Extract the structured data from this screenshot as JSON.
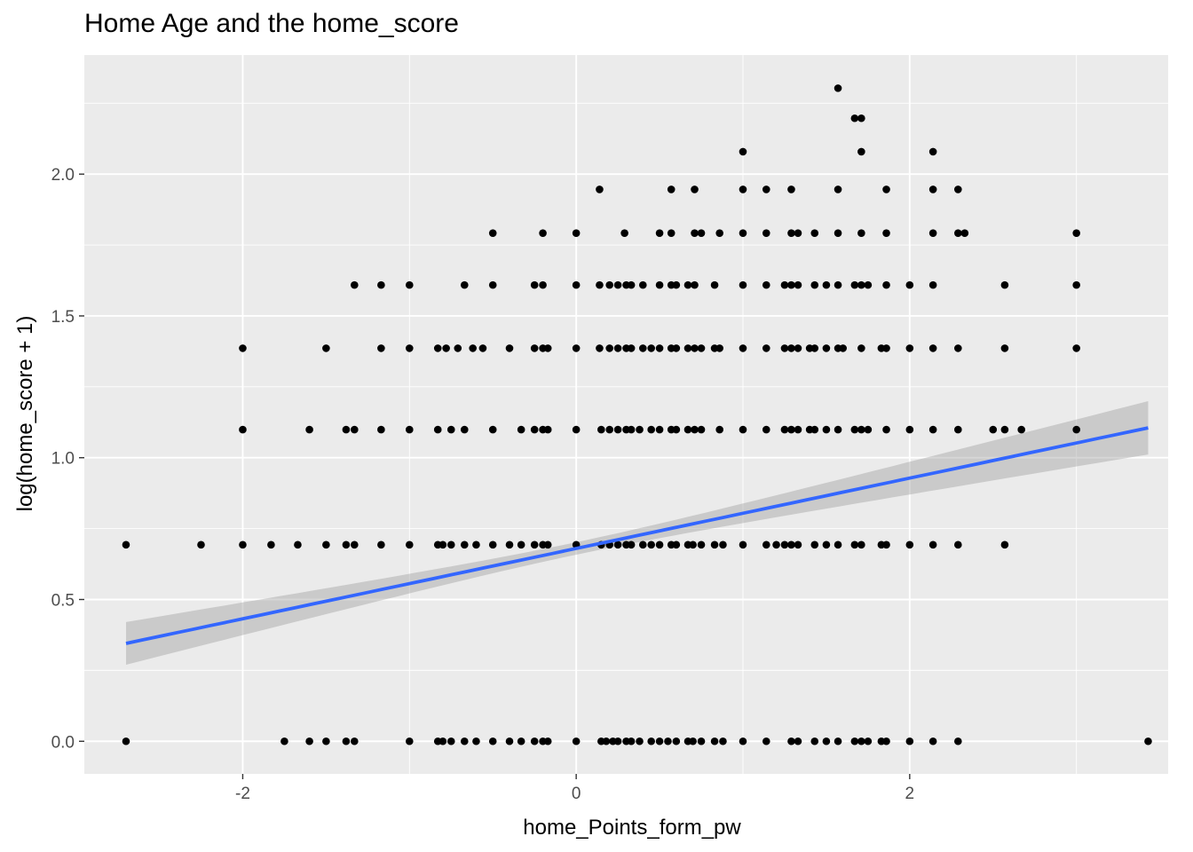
{
  "chart_data": {
    "type": "scatter",
    "title": "Home Age and the home_score",
    "xlabel": "home_Points_form_pw",
    "ylabel": "log(home_score + 1)",
    "xlim": [
      -2.95,
      3.55
    ],
    "ylim": [
      -0.115,
      2.42
    ],
    "x_ticks": [
      -2,
      0,
      2
    ],
    "x_tick_labels": [
      "-2",
      "0",
      "2"
    ],
    "y_ticks": [
      0,
      0.5,
      1,
      1.5,
      2
    ],
    "y_tick_labels": [
      "0.0",
      "0.5",
      "1.0",
      "1.5",
      "2.0"
    ],
    "grid": true,
    "colors": {
      "panel_background": "#ebebeb",
      "grid_line": "#ffffff",
      "points": "#000000",
      "fit_line": "#3366ff",
      "confidence_band": "#999999"
    },
    "points": [
      {
        "y": 0,
        "x": [
          -2.7,
          -1.75,
          -1.6,
          -1.5,
          -1.38,
          -1.33,
          -1,
          -0.83,
          -0.8,
          -0.75,
          -0.67,
          -0.6,
          -0.5,
          -0.4,
          -0.33,
          -0.25,
          -0.2,
          -0.17,
          0,
          0.15,
          0.18,
          0.22,
          0.25,
          0.3,
          0.33,
          0.38,
          0.45,
          0.5,
          0.55,
          0.6,
          0.67,
          0.7,
          0.75,
          0.83,
          0.88,
          1,
          1.14,
          1.29,
          1.33,
          1.43,
          1.5,
          1.57,
          1.67,
          1.71,
          1.75,
          1.83,
          1.86,
          2,
          2.14,
          2.29,
          3.43
        ]
      },
      {
        "y": 0.693,
        "x": [
          -2.7,
          -2.25,
          -2,
          -1.83,
          -1.67,
          -1.5,
          -1.38,
          -1.33,
          -1.17,
          -1,
          -0.83,
          -0.8,
          -0.75,
          -0.67,
          -0.6,
          -0.5,
          -0.4,
          -0.33,
          -0.25,
          -0.2,
          -0.17,
          0,
          0.15,
          0.2,
          0.25,
          0.3,
          0.33,
          0.4,
          0.45,
          0.5,
          0.57,
          0.6,
          0.67,
          0.7,
          0.75,
          0.83,
          0.88,
          1,
          1.14,
          1.2,
          1.25,
          1.29,
          1.33,
          1.43,
          1.5,
          1.57,
          1.67,
          1.71,
          1.83,
          1.86,
          2,
          2.14,
          2.29,
          2.57
        ]
      },
      {
        "y": 1.099,
        "x": [
          -2,
          -1.6,
          -1.38,
          -1.33,
          -1.17,
          -1,
          -0.83,
          -0.75,
          -0.67,
          -0.5,
          -0.33,
          -0.25,
          -0.2,
          -0.17,
          0,
          0.15,
          0.2,
          0.25,
          0.3,
          0.33,
          0.38,
          0.45,
          0.5,
          0.57,
          0.6,
          0.67,
          0.71,
          0.75,
          0.86,
          1,
          1.14,
          1.25,
          1.29,
          1.33,
          1.4,
          1.43,
          1.5,
          1.57,
          1.67,
          1.71,
          1.75,
          1.86,
          2,
          2.14,
          2.29,
          2.5,
          2.57,
          2.67,
          3
        ]
      },
      {
        "y": 1.386,
        "x": [
          -2,
          -1.5,
          -1.17,
          -1,
          -0.83,
          -0.78,
          -0.71,
          -0.62,
          -0.56,
          -0.4,
          -0.25,
          -0.2,
          -0.17,
          0,
          0.14,
          0.2,
          0.25,
          0.3,
          0.33,
          0.4,
          0.45,
          0.5,
          0.57,
          0.6,
          0.67,
          0.71,
          0.75,
          0.83,
          0.86,
          1,
          1.14,
          1.25,
          1.29,
          1.33,
          1.4,
          1.43,
          1.5,
          1.57,
          1.6,
          1.71,
          1.83,
          1.86,
          2,
          2.14,
          2.29,
          2.57,
          3
        ]
      },
      {
        "y": 1.609,
        "x": [
          -1.33,
          -1.17,
          -1,
          -0.67,
          -0.5,
          -0.25,
          -0.2,
          0,
          0.14,
          0.2,
          0.25,
          0.3,
          0.33,
          0.4,
          0.5,
          0.57,
          0.6,
          0.67,
          0.71,
          0.83,
          1,
          1.14,
          1.25,
          1.29,
          1.33,
          1.43,
          1.5,
          1.57,
          1.67,
          1.71,
          1.75,
          1.86,
          2,
          2.14,
          2.57,
          3
        ]
      },
      {
        "y": 1.792,
        "x": [
          -0.5,
          -0.2,
          0,
          0.29,
          0.5,
          0.57,
          0.71,
          0.75,
          0.86,
          1,
          1.14,
          1.29,
          1.33,
          1.43,
          1.57,
          1.71,
          1.86,
          2.14,
          2.29,
          2.33,
          3
        ]
      },
      {
        "y": 1.946,
        "x": [
          0.14,
          0.57,
          0.71,
          1,
          1.14,
          1.29,
          1.57,
          1.86,
          2.14,
          2.29
        ]
      },
      {
        "y": 2.079,
        "x": [
          1,
          1.71,
          2.14
        ]
      },
      {
        "y": 2.197,
        "x": [
          1.67,
          1.71
        ]
      },
      {
        "y": 2.303,
        "x": [
          1.57
        ]
      }
    ],
    "fit": {
      "method": "lm",
      "x_range": [
        -2.7,
        3.43
      ],
      "intercept": 0.68,
      "slope": 0.124,
      "se_at_x0": 0.022,
      "se_at_x_ends": 0.094
    }
  }
}
